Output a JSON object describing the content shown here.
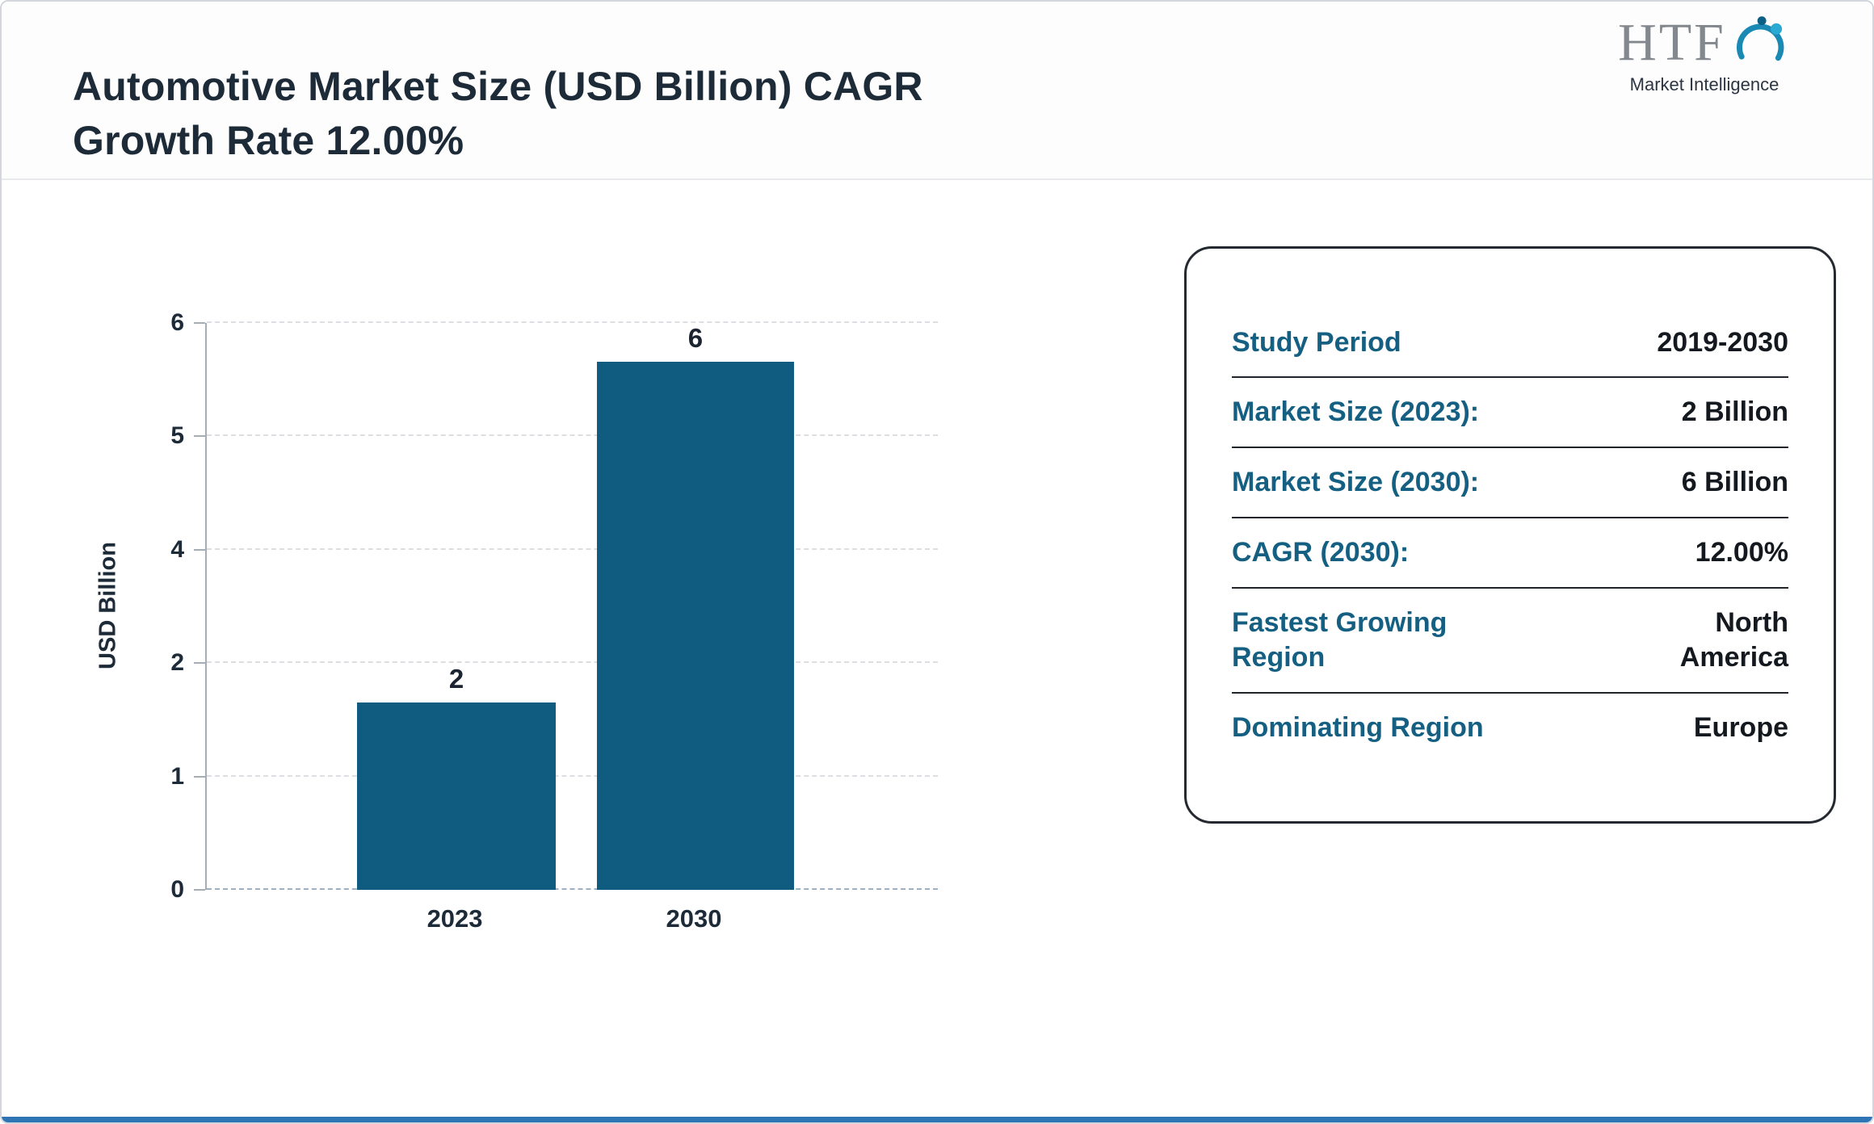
{
  "header": {
    "title_line1": "Automotive Market Size (USD Billion) CAGR",
    "title_line2": "Growth Rate 12.00%",
    "logo": {
      "name": "HTF",
      "subtitle": "Market Intelligence"
    }
  },
  "chart_data": {
    "type": "bar",
    "title": "Automotive Market Size (USD Billion) CAGR Growth Rate 12.00%",
    "categories": [
      "2023",
      "2030"
    ],
    "values": [
      2,
      6
    ],
    "bar_labels": [
      "2",
      "6"
    ],
    "ylabel": "USD Billion",
    "ylim": [
      0,
      6
    ],
    "ytick_labels": [
      "0",
      "1",
      "2",
      "4",
      "5",
      "6"
    ],
    "grid": "horizontal dashed",
    "legend": "none",
    "bar_color": "#0f5c80",
    "bar_height_fractions": [
      0.33,
      1.0
    ]
  },
  "summary_card": {
    "rows": [
      {
        "label": "Study Period",
        "value": "2019-2030"
      },
      {
        "label": "Market Size (2023):",
        "value": "2 Billion"
      },
      {
        "label": "Market Size (2030):",
        "value": "6 Billion"
      },
      {
        "label": "CAGR (2030):",
        "value": "12.00%"
      },
      {
        "label": "Fastest Growing Region",
        "value": "North America"
      },
      {
        "label": "Dominating Region",
        "value": "Europe"
      }
    ]
  },
  "colors": {
    "bar": "#0f5c80",
    "card_label": "#156082",
    "value_text": "#14191f",
    "title_text": "#1d2a38",
    "bottom_accent": "#2e75b6"
  }
}
